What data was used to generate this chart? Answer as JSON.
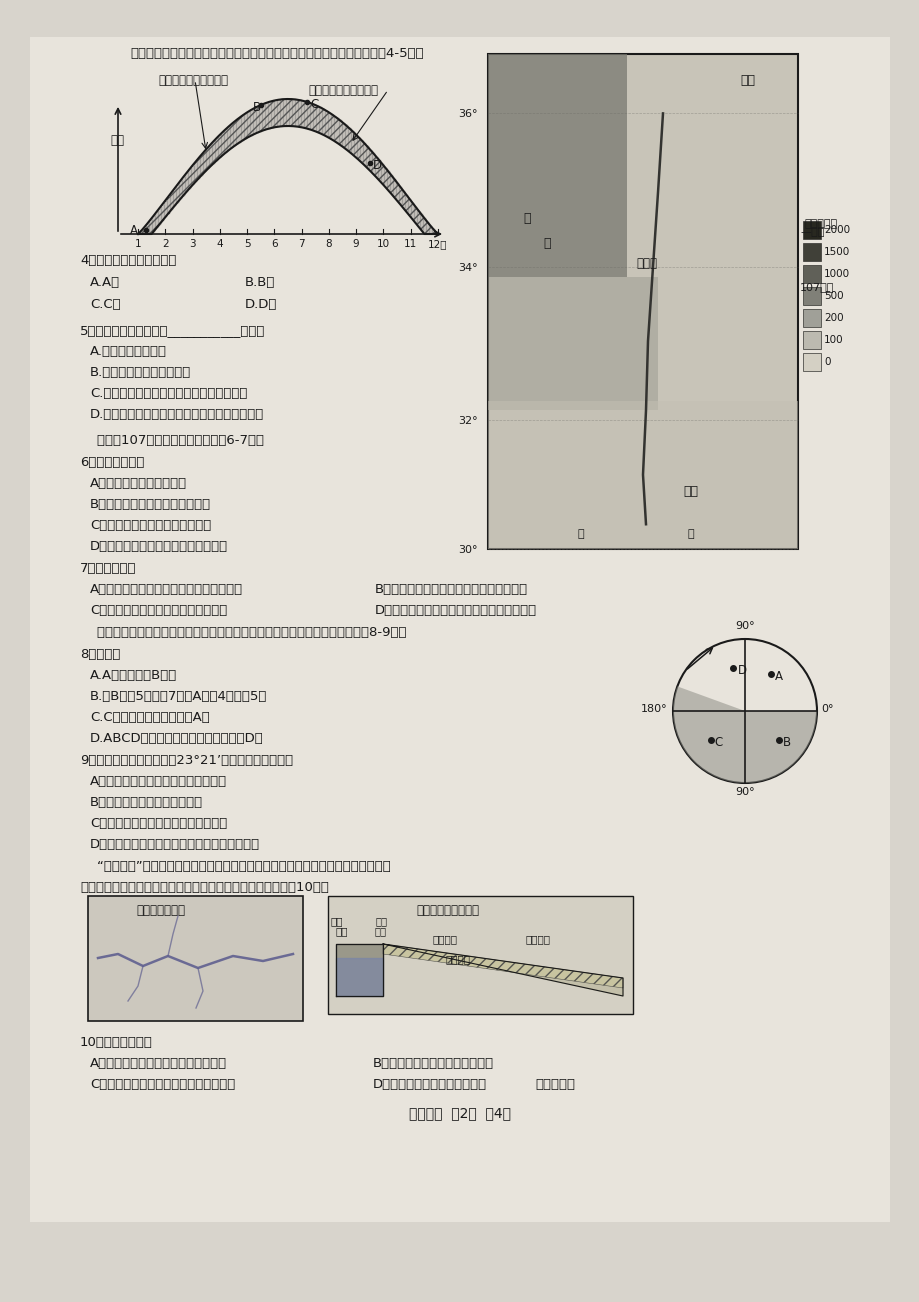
{
  "bg_color": "#d8d4cc",
  "page_bg": "#e8e4dc",
  "title_line": "读北半球某地近地面大气多年平均热量收入和支出年内变化示意图，回呲4-5题。",
  "q10_intro1": "“引黄淤灌”是将含沙量大的黄河水引入黄河堵坑的低洼地区进行沉淤，淤积下来的",
  "q10_intro2": "泥沙使低洼地区地势提高，清水用于灌溉。读图文材料，回第10题。",
  "footer": "高三地理 第2页 共4页"
}
